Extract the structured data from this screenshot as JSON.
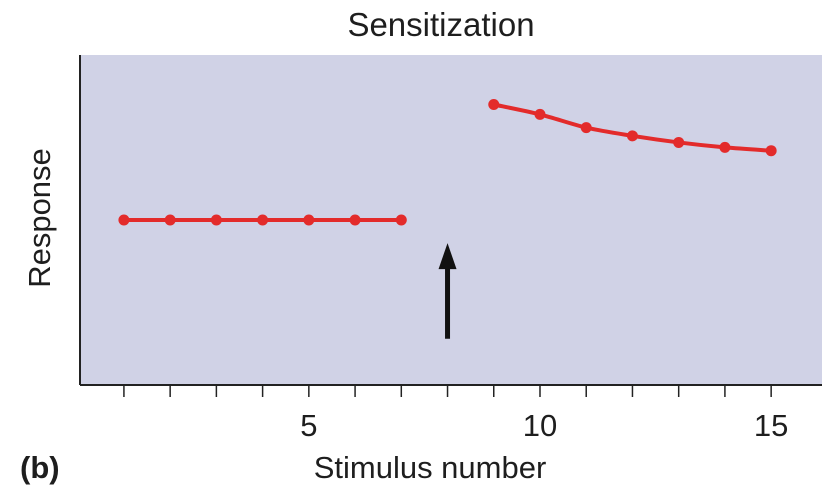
{
  "panel_label": "(b)",
  "chart_data": {
    "type": "line",
    "title": "Sensitization",
    "xlabel": "Stimulus number",
    "ylabel": "Response",
    "xlim": [
      0.05,
      16.1
    ],
    "ylim": [
      0,
      10
    ],
    "x_ticks": [
      1,
      2,
      3,
      4,
      5,
      6,
      7,
      8,
      9,
      10,
      11,
      12,
      13,
      14,
      15
    ],
    "x_tick_labels": [
      {
        "x": 5,
        "label": "5"
      },
      {
        "x": 10,
        "label": "10"
      },
      {
        "x": 15,
        "label": "15"
      }
    ],
    "grid": false,
    "background_color": "#d0d2e6",
    "series_color": "#e32b2b",
    "series": [
      {
        "x": [
          1,
          2,
          3,
          4,
          5,
          6,
          7
        ],
        "y": [
          5.0,
          5.0,
          5.0,
          5.0,
          5.0,
          5.0,
          5.0
        ]
      },
      {
        "x": [
          9,
          10,
          11,
          12,
          13,
          14,
          15
        ],
        "y": [
          8.5,
          8.2,
          7.8,
          7.55,
          7.35,
          7.2,
          7.1
        ]
      }
    ],
    "annotations": [
      {
        "type": "arrow",
        "direction": "up",
        "x": 8,
        "y_from": 1.4,
        "y_to": 4.3,
        "color": "#111111"
      }
    ]
  }
}
